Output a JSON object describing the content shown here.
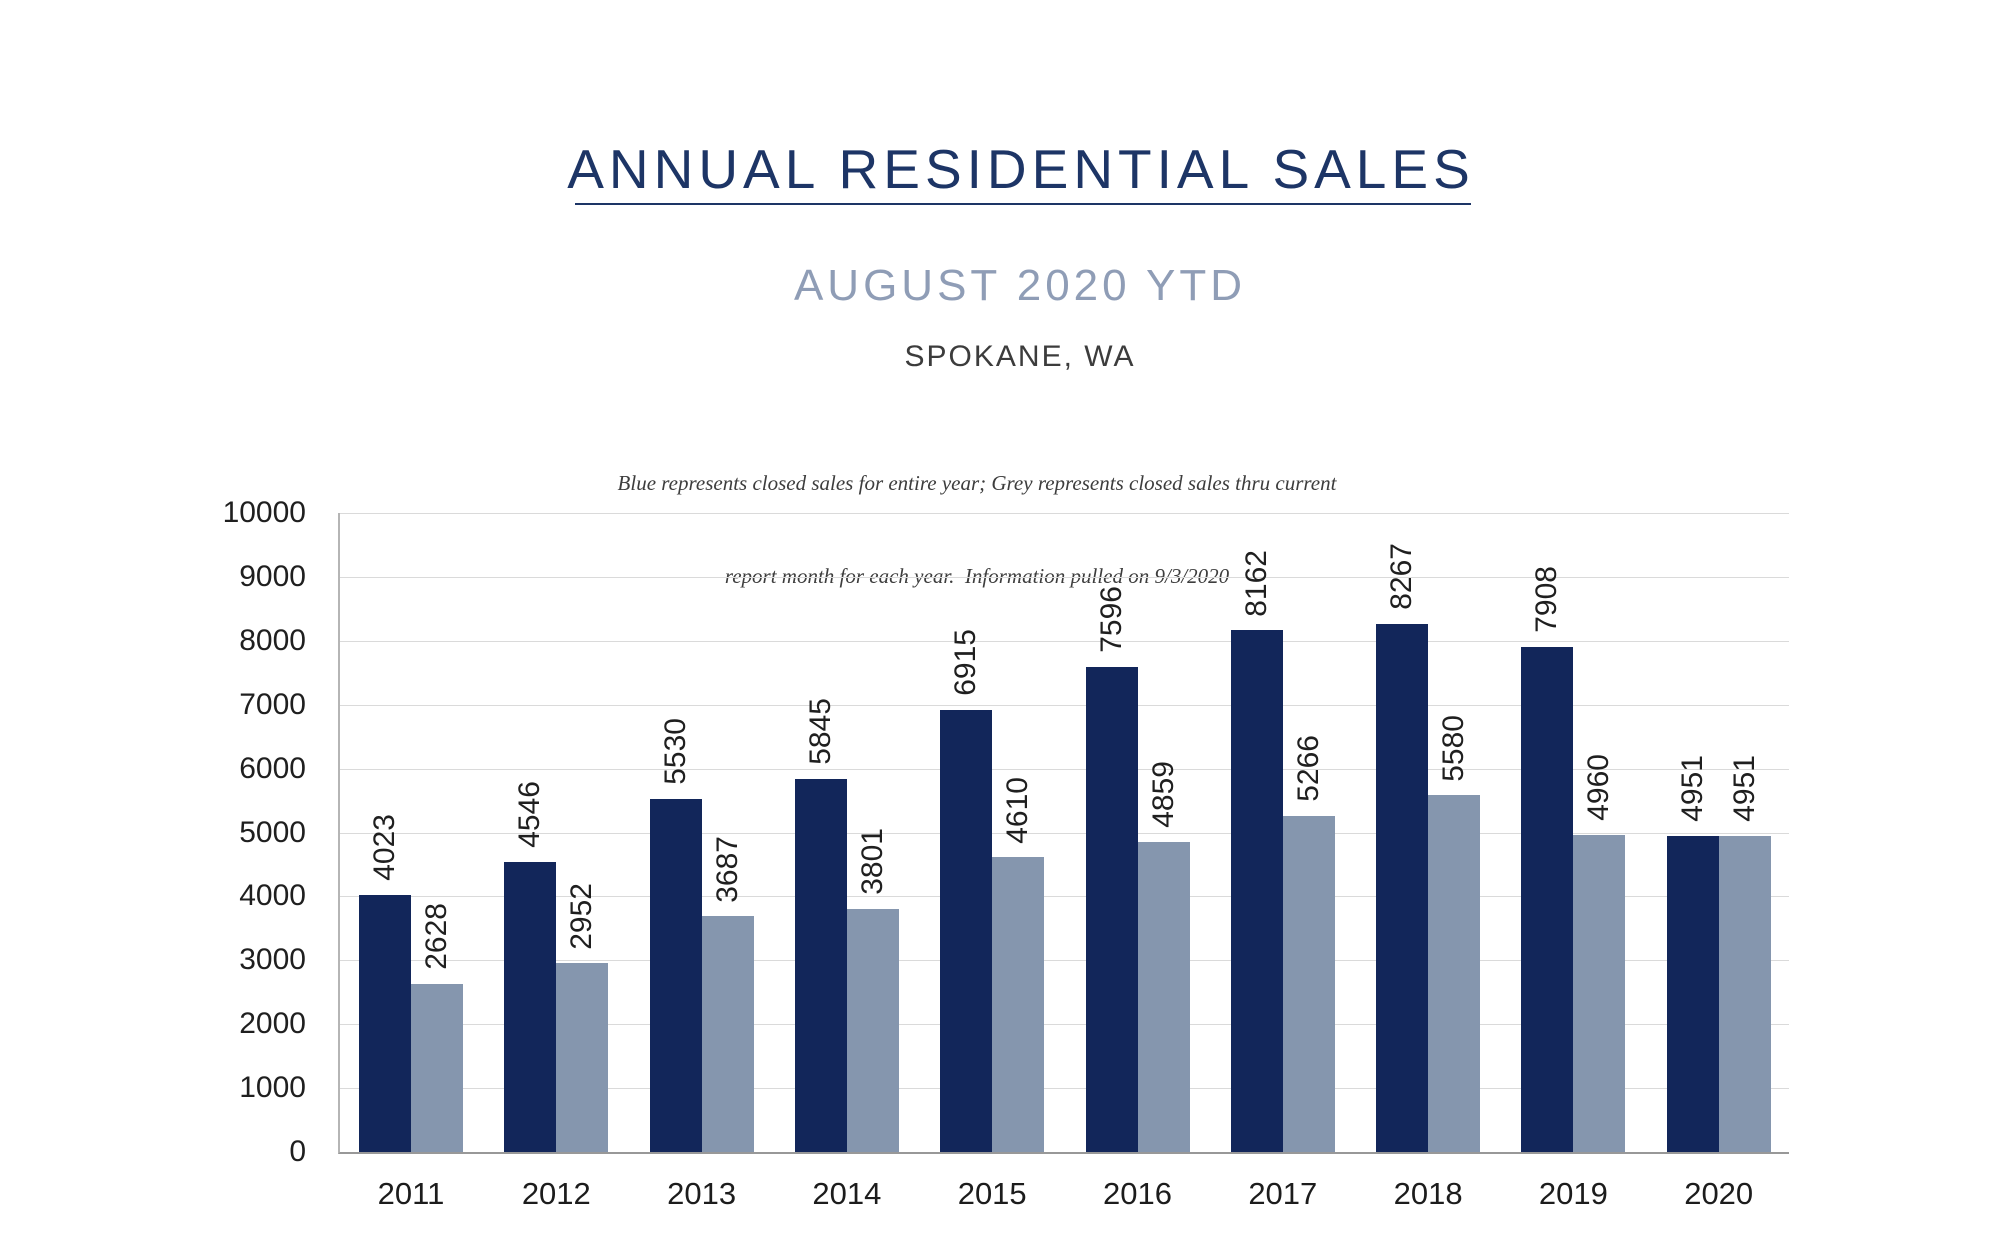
{
  "header": {
    "title": "ANNUAL RESIDENTIAL SALES",
    "subtitle": "AUGUST 2020 YTD",
    "location": "SPOKANE, WA",
    "note_line1": "Blue represents closed sales for entire year; Grey represents closed sales thru current",
    "note_line2": "report month for each year.  Information pulled on 9/3/2020"
  },
  "colors": {
    "title_navy": "#1d3566",
    "subtitle_grey": "#8f9db6",
    "bar_blue": "#12265a",
    "bar_grey": "#8596ae",
    "gridline": "#dadada",
    "axis_bottom": "#989898",
    "axis_left": "#b5b5b5",
    "label_text": "#1f1f1f"
  },
  "chart_data": {
    "type": "bar",
    "title": "Annual Residential Sales - August 2020 YTD - Spokane, WA",
    "categories": [
      "2011",
      "2012",
      "2013",
      "2014",
      "2015",
      "2016",
      "2017",
      "2018",
      "2019",
      "2020"
    ],
    "series": [
      {
        "name": "Closed sales for entire year (blue)",
        "color_key": "bar_blue",
        "values": [
          4023,
          4546,
          5530,
          5845,
          6915,
          7596,
          8162,
          8267,
          7908,
          4951
        ]
      },
      {
        "name": "Closed sales thru current report month (grey)",
        "color_key": "bar_grey",
        "values": [
          2628,
          2952,
          3687,
          3801,
          4610,
          4859,
          5266,
          5580,
          4960,
          4951
        ]
      }
    ],
    "xlabel": "",
    "ylabel": "",
    "ylim": [
      0,
      10000
    ],
    "ytick_step": 1000,
    "grid": true,
    "legend_position": "none",
    "value_labels_rotation": 90
  }
}
